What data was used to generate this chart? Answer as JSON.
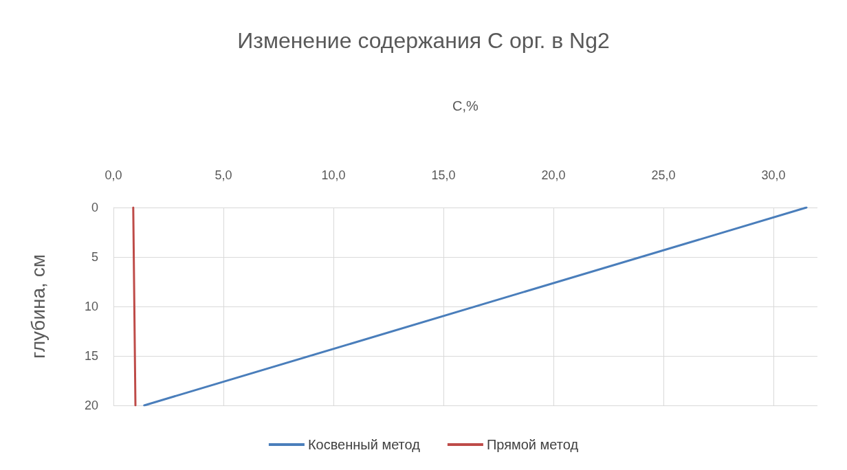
{
  "chart_data": {
    "type": "line",
    "title": "Изменение содержания C орг. в Ng2",
    "xlabel": "C,%",
    "ylabel": "глубина, см",
    "series": [
      {
        "name": "Косвенный метод",
        "color": "#4a7ebb",
        "x": [
          31.5,
          1.4
        ],
        "values": [
          0,
          20
        ]
      },
      {
        "name": "Прямой метод",
        "color": "#be4b48",
        "x": [
          0.9,
          1.0
        ],
        "values": [
          0,
          20
        ]
      }
    ],
    "xlim": [
      0,
      32
    ],
    "xticks": [
      {
        "value": 0,
        "label": "0,0"
      },
      {
        "value": 5,
        "label": "5,0"
      },
      {
        "value": 10,
        "label": "10,0"
      },
      {
        "value": 15,
        "label": "15,0"
      },
      {
        "value": 20,
        "label": "20,0"
      },
      {
        "value": 25,
        "label": "25,0"
      },
      {
        "value": 30,
        "label": "30,0"
      }
    ],
    "ylim": [
      20,
      0
    ],
    "yticks": [
      0,
      5,
      10,
      15,
      20
    ],
    "grid": true,
    "legend": "bottom",
    "marker": "none",
    "line_style": "solid"
  }
}
